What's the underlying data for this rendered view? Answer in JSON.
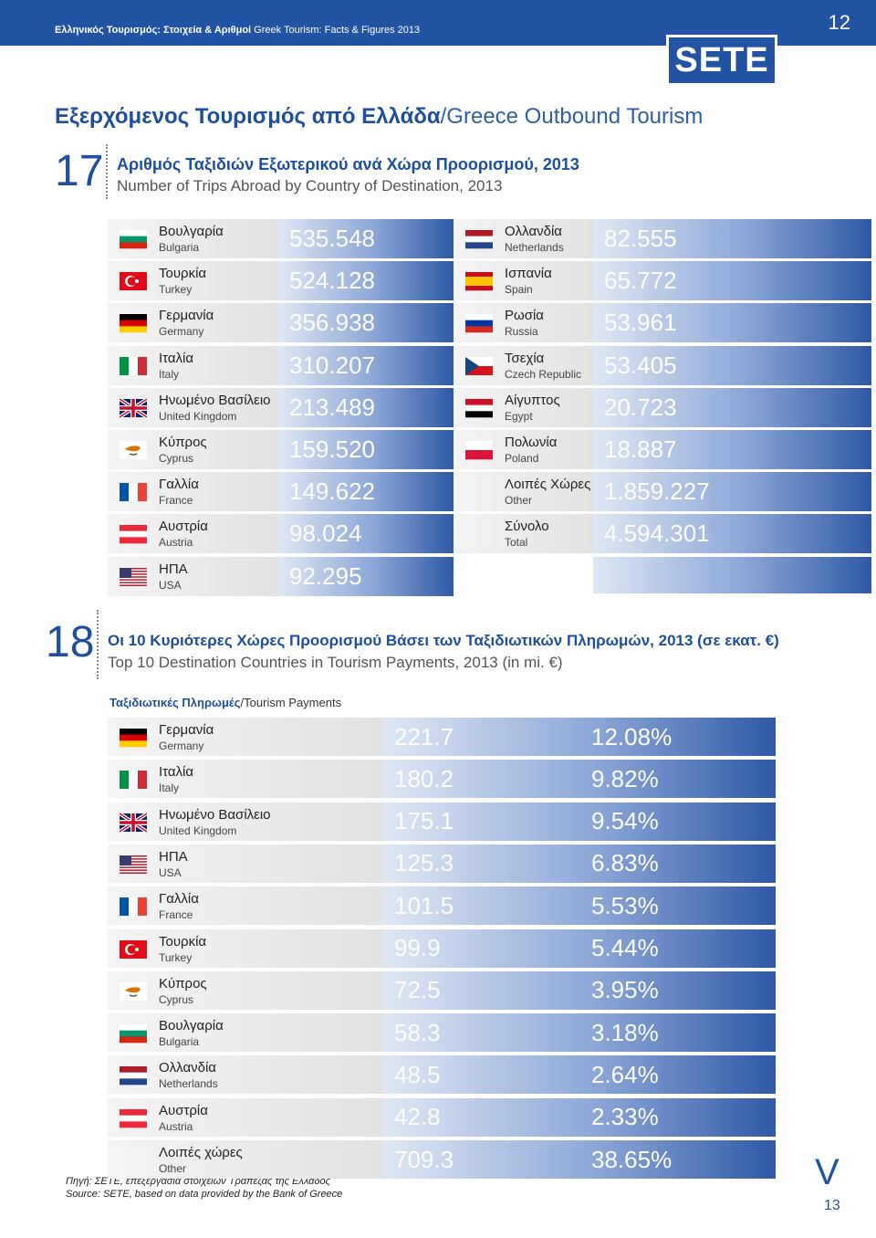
{
  "header": {
    "title_gr": "Ελληνικός Τουρισμός: Στοιχεία & Αριθμοί",
    "title_en": "Greek Tourism: Facts & Figures 2013",
    "page": "12",
    "logo": "SETE"
  },
  "title": {
    "gr": "Εξερχόμενος Τουρισμός από Ελλάδα",
    "en": "/Greece Outbound Tourism"
  },
  "section17": {
    "number": "17",
    "title_gr": "Αριθμός Ταξιδιών Εξωτερικού ανά Χώρα Προορισμού, 2013",
    "title_en": "Number of Trips Abroad by Country of Destination, 2013",
    "left": [
      {
        "gr": "Βουλγαρία",
        "en": "Bulgaria",
        "value": "535.548"
      },
      {
        "gr": "Τουρκία",
        "en": "Turkey",
        "value": "524.128"
      },
      {
        "gr": "Γερμανία",
        "en": "Germany",
        "value": "356.938"
      },
      {
        "gr": "Ιταλία",
        "en": "Italy",
        "value": "310.207"
      },
      {
        "gr": "Ηνωμένο Βασίλειο",
        "en": "United Kingdom",
        "value": "213.489"
      },
      {
        "gr": "Κύπρος",
        "en": "Cyprus",
        "value": "159.520"
      },
      {
        "gr": "Γαλλία",
        "en": "France",
        "value": "149.622"
      },
      {
        "gr": "Αυστρία",
        "en": "Austria",
        "value": "98.024"
      },
      {
        "gr": "ΗΠΑ",
        "en": "USA",
        "value": "92.295"
      }
    ],
    "right": [
      {
        "gr": "Ολλανδία",
        "en": "Netherlands",
        "value": "82.555"
      },
      {
        "gr": "Ισπανία",
        "en": "Spain",
        "value": "65.772"
      },
      {
        "gr": "Ρωσία",
        "en": "Russia",
        "value": "53.961"
      },
      {
        "gr": "Τσεχία",
        "en": "Czech Republic",
        "value": "53.405"
      },
      {
        "gr": "Αίγυπτος",
        "en": "Egypt",
        "value": "20.723"
      },
      {
        "gr": "Πολωνία",
        "en": "Poland",
        "value": "18.887"
      },
      {
        "gr": "Λοιπές Χώρες",
        "en": "Other",
        "value": "1.859.227"
      },
      {
        "gr": "Σύνολο",
        "en": "Total",
        "value": "4.594.301"
      }
    ]
  },
  "section18": {
    "number": "18",
    "title_gr": "Οι 10 Κυριότερες Χώρες Προορισμού Βάσει των Ταξιδιωτικών Πληρωμών, 2013 (σε εκατ. €)",
    "title_en": "Top 10 Destination Countries in Tourism Payments, 2013 (in mi. €)",
    "subtitle_gr": "Ταξιδιωτικές Πληρωμές",
    "subtitle_en": "/Tourism Payments",
    "rows": [
      {
        "gr": "Γερμανία",
        "en": "Germany",
        "value": "221.7",
        "share": "12.08%"
      },
      {
        "gr": "Ιταλία",
        "en": "Italy",
        "value": "180.2",
        "share": "9.82%"
      },
      {
        "gr": "Ηνωμένο Βασίλειο",
        "en": "United Kingdom",
        "value": "175.1",
        "share": "9.54%"
      },
      {
        "gr": "ΗΠΑ",
        "en": "USA",
        "value": "125.3",
        "share": "6.83%"
      },
      {
        "gr": "Γαλλία",
        "en": "France",
        "value": "101.5",
        "share": "5.53%"
      },
      {
        "gr": "Τουρκία",
        "en": "Turkey",
        "value": "99.9",
        "share": "5.44%"
      },
      {
        "gr": "Κύπρος",
        "en": "Cyprus",
        "value": "72.5",
        "share": "3.95%"
      },
      {
        "gr": "Βουλγαρία",
        "en": "Bulgaria",
        "value": "58.3",
        "share": "3.18%"
      },
      {
        "gr": "Ολλανδία",
        "en": "Netherlands",
        "value": "48.5",
        "share": "2.64%"
      },
      {
        "gr": "Αυστρία",
        "en": "Austria",
        "value": "42.8",
        "share": "2.33%"
      },
      {
        "gr": "Λοιπές χώρες",
        "en": "Other",
        "value": "709.3",
        "share": "38.65%"
      }
    ]
  },
  "footer": {
    "source_gr": "Πηγή: ΣΕΤΕ, επεξεργασία στοιχείων Τράπεζας της Ελλάδος",
    "source_en": "Source: SETE, based on data provided by the Bank of Greece",
    "page": "13",
    "mark": "V"
  }
}
